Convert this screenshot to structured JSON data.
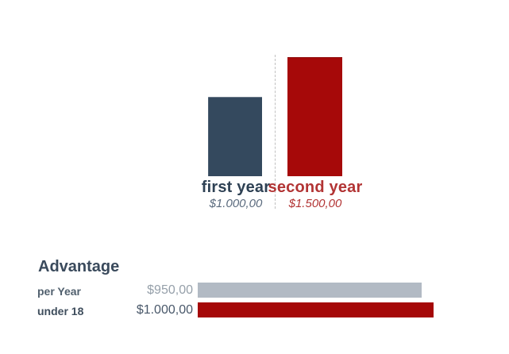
{
  "colors": {
    "first_year_bar": "#34495e",
    "second_year_bar": "#a60909",
    "first_year_text": "#2e4154",
    "second_year_text": "#b23434",
    "advantage_gray_bar": "#b2bac4",
    "advantage_red_bar": "#a50808",
    "heading_text": "#3a4a5c",
    "divider": "#c0c0c0"
  },
  "chart_data": [
    {
      "type": "bar",
      "orientation": "vertical",
      "title": "",
      "categories": [
        "first year",
        "second year"
      ],
      "values": [
        1000,
        1500
      ],
      "value_labels": [
        "$1.000,00",
        "$1.500,00"
      ],
      "colors": [
        "#34495e",
        "#a60909"
      ],
      "ylim": [
        0,
        1500
      ],
      "grid": false,
      "legend": "none",
      "notes": "two columns separated by a vertical dashed divider; category name and italic currency value beneath each column"
    },
    {
      "type": "bar",
      "orientation": "horizontal",
      "title": "Advantage",
      "categories": [
        "per Year",
        "under 18"
      ],
      "values": [
        950,
        1000
      ],
      "value_labels": [
        "$950,00",
        "$1.000,00"
      ],
      "colors": [
        "#b2bac4",
        "#a50808"
      ],
      "xlim": [
        0,
        1000
      ],
      "grid": false,
      "legend": "none"
    }
  ]
}
